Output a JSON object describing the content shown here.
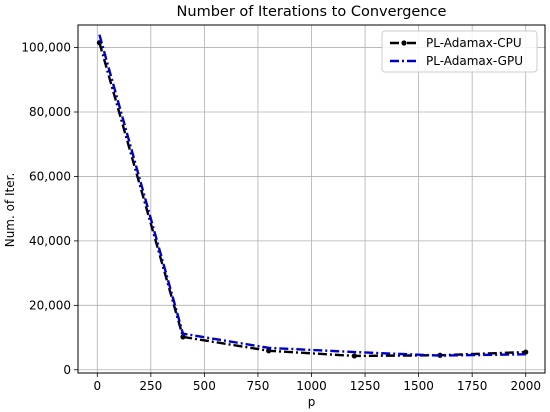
{
  "chart_data": {
    "type": "line",
    "title": "Number of Iterations to Convergence",
    "xlabel": "p",
    "ylabel": "Num. of Iter.",
    "xlim": [
      -90,
      2090
    ],
    "ylim": [
      -1000,
      107000
    ],
    "xticks": [
      0,
      250,
      500,
      750,
      1000,
      1250,
      1500,
      1750,
      2000
    ],
    "xtick_labels": [
      "0",
      "250",
      "500",
      "750",
      "1000",
      "1250",
      "1500",
      "1750",
      "2000"
    ],
    "yticks": [
      0,
      20000,
      40000,
      60000,
      80000,
      100000
    ],
    "ytick_labels": [
      "0",
      "20,000",
      "40,000",
      "60,000",
      "80,000",
      "100,000"
    ],
    "grid": true,
    "legend_position": "top-right",
    "series": [
      {
        "name": "PL-Adamax-CPU",
        "color": "#000000",
        "marker": "circle",
        "x": [
          10,
          400,
          800,
          1200,
          1600,
          2000
        ],
        "y": [
          101500,
          10200,
          5900,
          4300,
          4500,
          5500
        ]
      },
      {
        "name": "PL-Adamax-GPU",
        "color": "#0000cc",
        "marker": "none",
        "x": [
          10,
          400,
          800,
          1200,
          1600,
          2000
        ],
        "y": [
          104000,
          11200,
          6800,
          5500,
          4400,
          4800
        ]
      }
    ]
  }
}
